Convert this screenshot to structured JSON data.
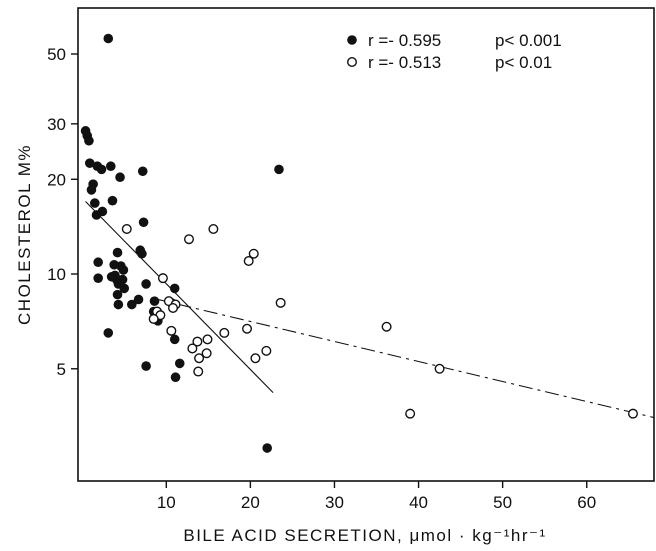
{
  "chart_data": {
    "type": "scatter",
    "title": "",
    "xlabel": "BILE ACID SECRETION, μmol · kg⁻¹hr⁻¹",
    "ylabel": "CHOLESTEROL M%",
    "xlim": [
      -0.5,
      68
    ],
    "ylim": [
      2.2,
      70
    ],
    "yscale": "log",
    "xticks": [
      10,
      20,
      30,
      40,
      50,
      60
    ],
    "yticks": [
      5,
      10,
      20,
      30,
      50
    ],
    "grid": false,
    "legend_position": "top-right",
    "series": [
      {
        "marker": "filled-circle",
        "legend_r": "r =- 0.595",
        "legend_p": "p< 0.001",
        "color": "#111111",
        "points": [
          [
            3.1,
            56
          ],
          [
            0.4,
            28.5
          ],
          [
            0.6,
            27.5
          ],
          [
            0.8,
            26.5
          ],
          [
            0.9,
            22.5
          ],
          [
            1.8,
            22
          ],
          [
            2.3,
            21.5
          ],
          [
            3.4,
            22
          ],
          [
            4.5,
            20.3
          ],
          [
            7.2,
            21.2
          ],
          [
            23.4,
            21.5
          ],
          [
            1.3,
            19.3
          ],
          [
            1.1,
            18.5
          ],
          [
            1.5,
            16.8
          ],
          [
            3.6,
            17.1
          ],
          [
            2.4,
            15.8
          ],
          [
            1.7,
            15.4
          ],
          [
            7.3,
            14.6
          ],
          [
            4.2,
            11.7
          ],
          [
            6.9,
            11.9
          ],
          [
            7.1,
            11.6
          ],
          [
            1.9,
            10.9
          ],
          [
            3.8,
            10.7
          ],
          [
            4.6,
            10.6
          ],
          [
            4.9,
            10.3
          ],
          [
            3.9,
            9.9
          ],
          [
            4.1,
            9.6
          ],
          [
            4.8,
            9.6
          ],
          [
            1.9,
            9.7
          ],
          [
            3.5,
            9.8
          ],
          [
            4.3,
            9.3
          ],
          [
            7.6,
            9.3
          ],
          [
            5.0,
            9.0
          ],
          [
            11.0,
            9.0
          ],
          [
            4.2,
            8.6
          ],
          [
            6.7,
            8.3
          ],
          [
            8.6,
            8.2
          ],
          [
            4.3,
            8.0
          ],
          [
            5.9,
            8.0
          ],
          [
            10.6,
            8.1
          ],
          [
            8.5,
            7.6
          ],
          [
            9.0,
            7.1
          ],
          [
            3.1,
            6.5
          ],
          [
            11.0,
            6.2
          ],
          [
            7.6,
            5.1
          ],
          [
            11.6,
            5.2
          ],
          [
            11.1,
            4.7
          ],
          [
            22.0,
            2.8
          ]
        ]
      },
      {
        "marker": "open-circle",
        "legend_r": "r =- 0.513",
        "legend_p": "p< 0.01",
        "color": "#111111",
        "points": [
          [
            5.3,
            13.9
          ],
          [
            15.6,
            13.9
          ],
          [
            12.7,
            12.9
          ],
          [
            20.4,
            11.6
          ],
          [
            19.8,
            11.0
          ],
          [
            9.6,
            9.7
          ],
          [
            23.6,
            8.1
          ],
          [
            10.3,
            8.2
          ],
          [
            11.1,
            8.0
          ],
          [
            10.8,
            7.8
          ],
          [
            8.9,
            7.6
          ],
          [
            9.3,
            7.4
          ],
          [
            8.5,
            7.2
          ],
          [
            10.6,
            6.6
          ],
          [
            16.9,
            6.5
          ],
          [
            19.6,
            6.7
          ],
          [
            36.2,
            6.8
          ],
          [
            14.9,
            6.2
          ],
          [
            13.7,
            6.1
          ],
          [
            13.1,
            5.8
          ],
          [
            14.8,
            5.6
          ],
          [
            21.9,
            5.7
          ],
          [
            13.9,
            5.4
          ],
          [
            20.6,
            5.4
          ],
          [
            42.5,
            5.0
          ],
          [
            13.8,
            4.9
          ],
          [
            39.0,
            3.6
          ],
          [
            65.5,
            3.6
          ]
        ]
      }
    ],
    "regression_lines": [
      {
        "style": "solid",
        "from": [
          0.4,
          17
        ],
        "to": [
          22.7,
          4.2
        ]
      },
      {
        "style": "dash-dot",
        "from": [
          8.2,
          8.4
        ],
        "to": [
          68,
          3.5
        ]
      }
    ]
  }
}
